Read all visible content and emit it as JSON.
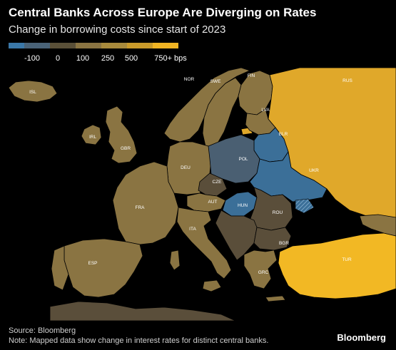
{
  "header": {
    "title": "Central Banks Across Europe Are Diverging on Rates",
    "subtitle": "Change in borrowing costs since start of 2023"
  },
  "legend": {
    "labels": [
      "-100",
      "0",
      "100",
      "250",
      "500",
      "750+ bps"
    ],
    "colors": [
      "#3b78a8",
      "#4a6378",
      "#5a5038",
      "#8a7442",
      "#a88a3c",
      "#c99a2a",
      "#f0b423"
    ]
  },
  "map": {
    "countries": [
      {
        "code": "ISL",
        "color": "#8a7442"
      },
      {
        "code": "NOR",
        "color": "#8a7442"
      },
      {
        "code": "SWE",
        "color": "#8a7442"
      },
      {
        "code": "FIN",
        "color": "#8a7442"
      },
      {
        "code": "RUS",
        "color": "#e0a82a"
      },
      {
        "code": "LVA",
        "color": "#8a7442"
      },
      {
        "code": "BLR",
        "color": "#3b6f98"
      },
      {
        "code": "IRL",
        "color": "#8a7442"
      },
      {
        "code": "GBR",
        "color": "#8a7442"
      },
      {
        "code": "DEU",
        "color": "#8a7442"
      },
      {
        "code": "POL",
        "color": "#4a5f72"
      },
      {
        "code": "UKR",
        "color": "#3b6f98"
      },
      {
        "code": "CZE",
        "color": "#5a4e3a"
      },
      {
        "code": "FRA",
        "color": "#8a7442"
      },
      {
        "code": "AUT",
        "color": "#8a7442"
      },
      {
        "code": "HUN",
        "color": "#3b6f98"
      },
      {
        "code": "ROU",
        "color": "#5a4e3a"
      },
      {
        "code": "ITA",
        "color": "#8a7442"
      },
      {
        "code": "BGR",
        "color": "#5a4e3a"
      },
      {
        "code": "ESP",
        "color": "#8a7442"
      },
      {
        "code": "TUR",
        "color": "#f2b824"
      },
      {
        "code": "GRC",
        "color": "#8a7442"
      }
    ]
  },
  "footer": {
    "source": "Source: Bloomberg",
    "note": "Note: Mapped data show change in interest rates for distinct central banks."
  },
  "brand": "Bloomberg"
}
